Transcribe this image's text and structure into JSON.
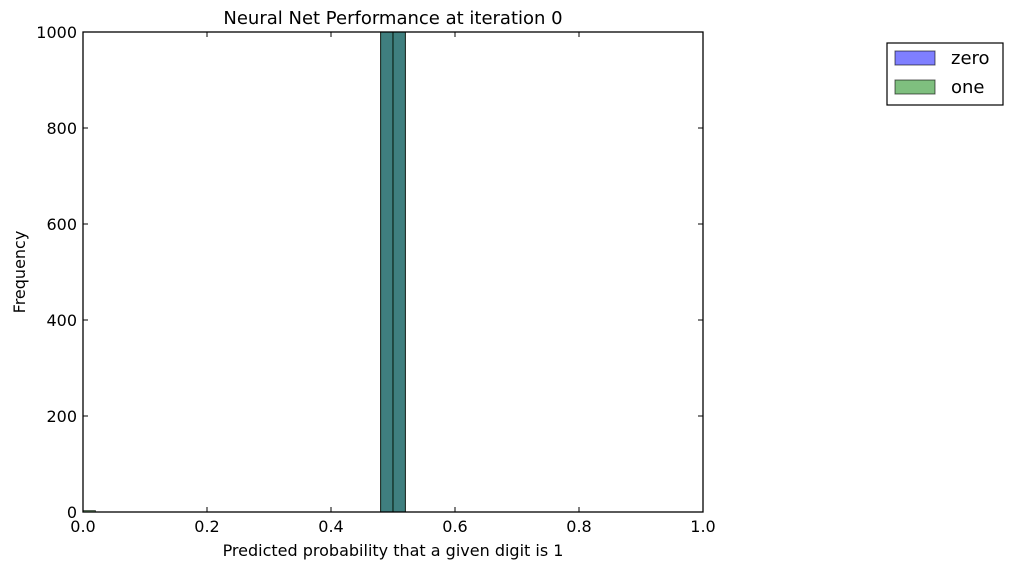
{
  "chart_data": {
    "type": "bar",
    "title": "Neural Net Performance at iteration 0",
    "xlabel": "Predicted probability that a given digit is 1",
    "ylabel": "Frequency",
    "xlim": [
      0.0,
      1.0
    ],
    "ylim": [
      0,
      1000
    ],
    "xticks": [
      "0.0",
      "0.2",
      "0.4",
      "0.6",
      "0.8",
      "1.0"
    ],
    "yticks": [
      "0",
      "200",
      "400",
      "600",
      "800",
      "1000"
    ],
    "grid": false,
    "legend_position": "outside top-right",
    "series": [
      {
        "name": "zero",
        "color": "#0000ff",
        "alpha": 0.5,
        "bins": [
          {
            "x0": 0.48,
            "x1": 0.5,
            "value": 1000
          },
          {
            "x0": 0.5,
            "x1": 0.52,
            "value": 1000
          }
        ]
      },
      {
        "name": "one",
        "color": "#008000",
        "alpha": 0.5,
        "bins": [
          {
            "x0": 0.0,
            "x1": 0.02,
            "value": 3
          },
          {
            "x0": 0.48,
            "x1": 0.5,
            "value": 1000
          },
          {
            "x0": 0.5,
            "x1": 0.52,
            "value": 1000
          }
        ]
      }
    ]
  }
}
